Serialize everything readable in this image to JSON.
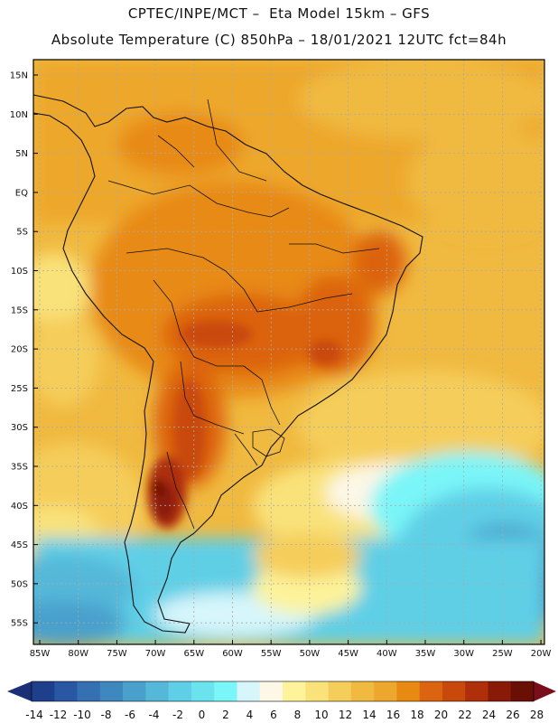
{
  "header": {
    "line1": "CPTEC/INPE/MCT –  Eta Model 15km – GFS",
    "line2": "Absolute Temperature (C) 850hPa – 18/01/2021 12UTC fct=84h"
  },
  "map": {
    "lat_labels": [
      "15N",
      "10N",
      "5N",
      "EQ",
      "5S",
      "10S",
      "15S",
      "20S",
      "25S",
      "30S",
      "35S",
      "40S",
      "45S",
      "50S",
      "55S"
    ],
    "lon_labels": [
      "85W",
      "80W",
      "75W",
      "70W",
      "65W",
      "60W",
      "55W",
      "50W",
      "45W",
      "40W",
      "35W",
      "30W",
      "25W",
      "20W"
    ]
  },
  "colorbar": {
    "labels": [
      "-14",
      "-12",
      "-10",
      "-8",
      "-6",
      "-4",
      "-2",
      "0",
      "2",
      "4",
      "6",
      "8",
      "10",
      "12",
      "14",
      "16",
      "18",
      "20",
      "22",
      "24",
      "26",
      "28"
    ],
    "colors": [
      "#1e3f8c",
      "#2a57a3",
      "#3570b3",
      "#3f87bf",
      "#4aa0cc",
      "#55b8d9",
      "#5ecfe6",
      "#6ae3ef",
      "#7af5f8",
      "#d6f6fb",
      "#fdf7e6",
      "#fdf39a",
      "#f9e27a",
      "#f5cd5a",
      "#f0b93f",
      "#eda72c",
      "#e88a12",
      "#dc6410",
      "#c9490c",
      "#ae2f0a",
      "#8a1a08",
      "#6a0f06"
    ],
    "left_arrow_color": "#1a2f75",
    "right_arrow_color": "#7a0f1c"
  },
  "colors": {
    "ocean_south": "#57c7e0",
    "deep_ocean": "#3a7fb8",
    "land_hot": "#d8570f",
    "land_very_hot": "#7a1a08",
    "tropical": "#eda72c"
  }
}
